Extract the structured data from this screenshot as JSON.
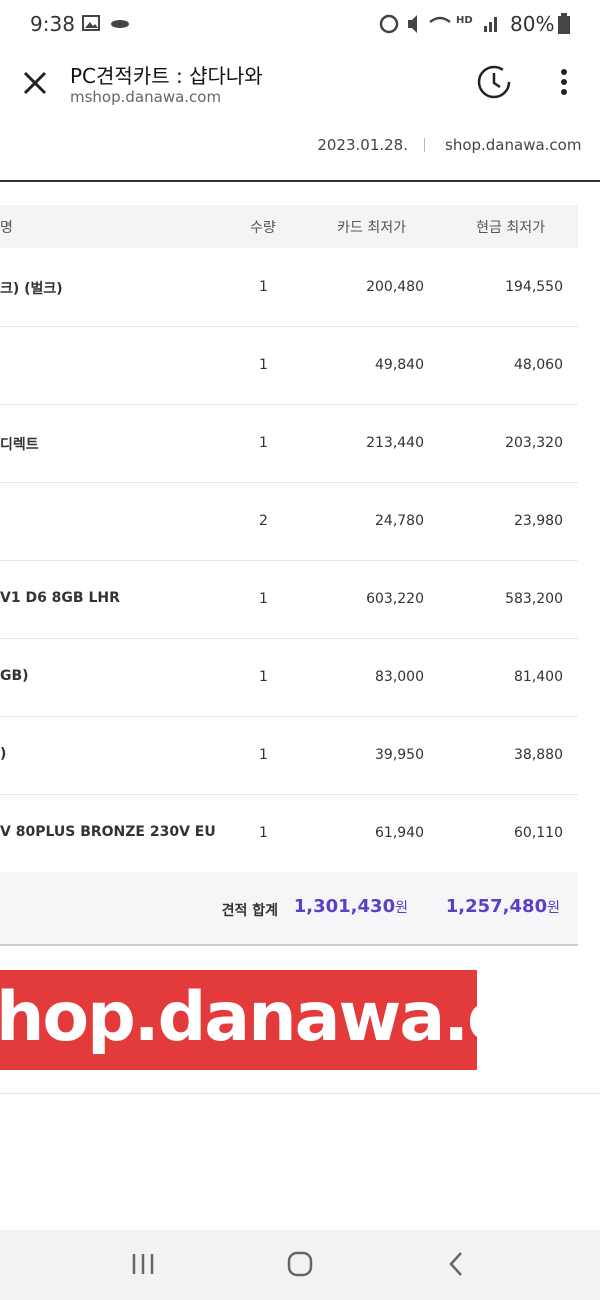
{
  "status_bar": {
    "time": "9:38",
    "battery": "80%"
  },
  "browser": {
    "title": "PC견적카트 : 샵다나와",
    "url": "mshop.danawa.com"
  },
  "header": {
    "date": "2023.01.28.",
    "site": "shop.danawa.com"
  },
  "table": {
    "columns": [
      "명",
      "수량",
      "카드 최저가",
      "현금 최저가"
    ],
    "rows": [
      {
        "name": "크) (벌크)",
        "qty": "1",
        "card": "200,480",
        "cash": "194,550"
      },
      {
        "qty": "1",
        "card": "49,840",
        "cash": "48,060"
      },
      {
        "name": "디렉트",
        "qty": "1",
        "card": "213,440",
        "cash": "203,320"
      },
      {
        "qty": "2",
        "card": "24,780",
        "cash": "23,980"
      },
      {
        "name": "V1 D6 8GB LHR",
        "qty": "1",
        "card": "603,220",
        "cash": "583,200"
      },
      {
        "name": "GB)",
        "qty": "1",
        "card": "83,000",
        "cash": "81,400"
      },
      {
        "name": ")",
        "qty": "1",
        "card": "39,950",
        "cash": "38,880"
      },
      {
        "name": "V 80PLUS BRONZE 230V EU",
        "qty": "1",
        "card": "61,940",
        "cash": "60,110"
      }
    ],
    "total": {
      "label": "견적 합계",
      "card": "1,301,430",
      "card_unit": "원",
      "cash": "1,257,480",
      "cash_unit": "원"
    }
  },
  "banner": {
    "text": "hop.danawa.com"
  }
}
